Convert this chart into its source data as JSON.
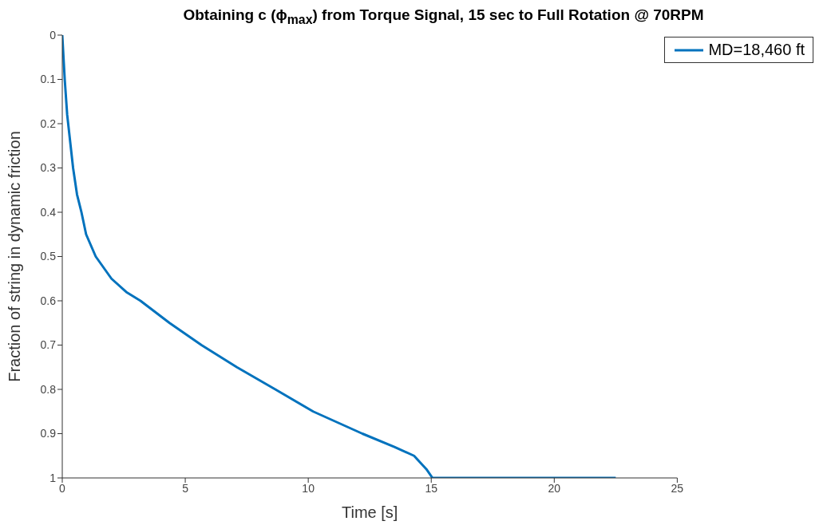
{
  "chart_data": {
    "type": "line",
    "title": "Obtaining c (ϕ$_{max}$) from Torque Signal, 15 sec to Full Rotation @ 70RPM",
    "xlabel": "Time [s]",
    "ylabel": "Fraction of string in dynamic friction",
    "x": [
      0,
      0.1,
      0.2,
      0.44,
      0.6,
      0.78,
      0.97,
      1.36,
      2,
      2.6,
      3.18,
      4.36,
      5.66,
      7.1,
      8.66,
      10.2,
      12.2,
      13.5,
      14.3,
      14.8,
      15.05,
      22.5
    ],
    "series": [
      {
        "name": "MD=18,460 ft",
        "color": "#0072bd",
        "values": [
          0,
          0.1,
          0.18,
          0.3,
          0.36,
          0.4,
          0.45,
          0.5,
          0.55,
          0.58,
          0.6,
          0.65,
          0.7,
          0.75,
          0.8,
          0.85,
          0.9,
          0.93,
          0.95,
          0.98,
          1,
          1
        ]
      }
    ],
    "xlim": [
      0,
      25
    ],
    "xticks": [
      0,
      5,
      10,
      15,
      20,
      25
    ],
    "ylim": [
      1,
      0
    ],
    "yticks": [
      0,
      0.1,
      0.2,
      0.3,
      0.4,
      0.5,
      0.6,
      0.7,
      0.8,
      0.9,
      1
    ],
    "grid": false,
    "legend": "top right",
    "marker": "none",
    "line_style": "solid"
  }
}
